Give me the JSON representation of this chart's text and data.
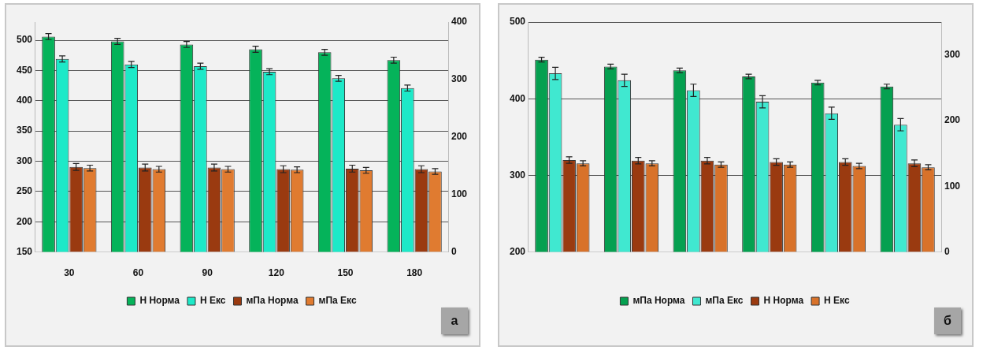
{
  "chart_data": [
    {
      "type": "bar",
      "categories": [
        "30",
        "60",
        "90",
        "120",
        "150",
        "180"
      ],
      "ylim": [
        150,
        530
      ],
      "yticks": [
        150,
        200,
        250,
        300,
        350,
        400,
        450,
        500
      ],
      "y2lim": [
        0,
        400
      ],
      "y2ticks": [
        0,
        100,
        200,
        300,
        400
      ],
      "grid": "y",
      "legend": "bottom",
      "annotations": [
        "а"
      ],
      "series": [
        {
          "name": "Н Норма",
          "color": "#05b35a",
          "values": [
            506,
            498,
            493,
            485,
            480,
            467
          ],
          "errors": [
            5,
            5,
            5,
            5,
            5,
            5
          ]
        },
        {
          "name": "Н Екс",
          "color": "#1de9c8",
          "values": [
            469,
            460,
            457,
            448,
            437,
            421
          ],
          "errors": [
            5,
            5,
            5,
            5,
            5,
            5
          ]
        },
        {
          "name": "мПа Норма",
          "color": "#9a3a10",
          "axis": "y2",
          "values": [
            148,
            147,
            147,
            144,
            145,
            144
          ],
          "errors": [
            6,
            6,
            6,
            6,
            6,
            6
          ]
        },
        {
          "name": "мПа Екс",
          "color": "#e07b30",
          "axis": "y2",
          "values": [
            146,
            144,
            144,
            143,
            142,
            140
          ],
          "errors": [
            5,
            5,
            5,
            5,
            5,
            5
          ]
        }
      ]
    },
    {
      "type": "bar",
      "categories": [
        null,
        null,
        null,
        null,
        null,
        null
      ],
      "ylim": [
        200,
        500
      ],
      "yticks": [
        200,
        300,
        400,
        500
      ],
      "y2lim": [
        0,
        350
      ],
      "y2ticks": [
        0,
        100,
        200,
        300
      ],
      "grid": "y",
      "legend": "bottom",
      "annotations": [
        "б"
      ],
      "series": [
        {
          "name": "мПа Норма",
          "color": "#05a050",
          "values": [
            451,
            442,
            437,
            429,
            421,
            416
          ],
          "errors": [
            3,
            3,
            3,
            3,
            3,
            3
          ]
        },
        {
          "name": "мПа Екс",
          "color": "#40e8d0",
          "values": [
            433,
            424,
            411,
            396,
            381,
            366
          ],
          "errors": [
            8,
            8,
            8,
            8,
            8,
            8
          ]
        },
        {
          "name": "Н Норма",
          "color": "#9a3a10",
          "axis": "y2",
          "values": [
            140,
            139,
            139,
            137,
            137,
            135
          ],
          "errors": [
            5,
            5,
            5,
            5,
            5,
            5
          ]
        },
        {
          "name": "Н Екс",
          "color": "#d8722a",
          "axis": "y2",
          "values": [
            135,
            135,
            133,
            133,
            131,
            129
          ],
          "errors": [
            4,
            4,
            4,
            4,
            4,
            4
          ]
        }
      ]
    }
  ]
}
